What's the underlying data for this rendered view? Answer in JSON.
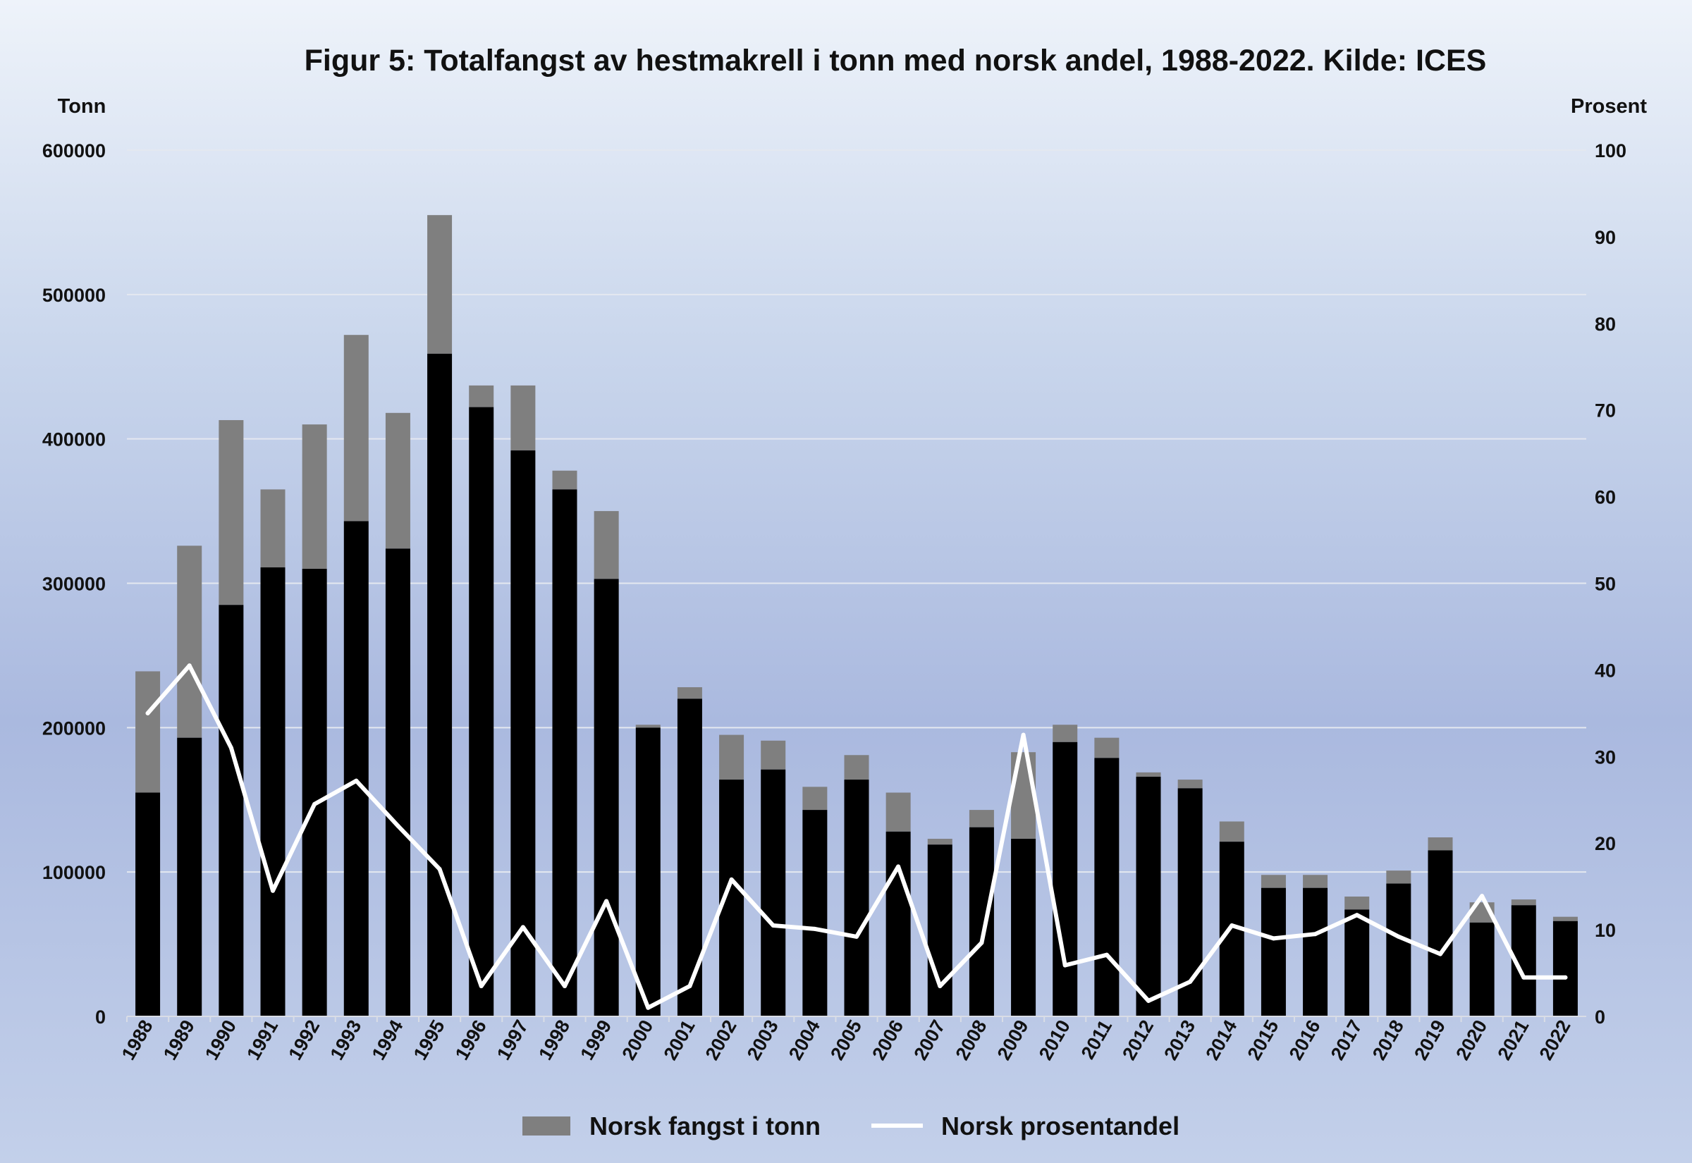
{
  "chart_data": {
    "type": "bar",
    "title": "Figur 5: Totalfangst av hestmakrell i tonn med norsk andel, 1988-2022. Kilde: ICES",
    "ylabel_left": "Tonn",
    "ylabel_right": "Prosent",
    "ylim_left": [
      0,
      600000
    ],
    "ylim_right": [
      0,
      100
    ],
    "yticks_left": [
      "0",
      "100000",
      "200000",
      "300000",
      "400000",
      "500000",
      "600000"
    ],
    "yticks_right": [
      "0",
      "10",
      "20",
      "30",
      "40",
      "50",
      "60",
      "70",
      "80",
      "90",
      "100"
    ],
    "grid": true,
    "legend_position": "bottom",
    "categories": [
      "1988",
      "1989",
      "1990",
      "1991",
      "1992",
      "1993",
      "1994",
      "1995",
      "1996",
      "1997",
      "1998",
      "1999",
      "2000",
      "2001",
      "2002",
      "2003",
      "2004",
      "2005",
      "2006",
      "2007",
      "2008",
      "2009",
      "2010",
      "2011",
      "2012",
      "2013",
      "2014",
      "2015",
      "2016",
      "2017",
      "2018",
      "2019",
      "2020",
      "2021",
      "2022"
    ],
    "series": [
      {
        "role": "bar-base",
        "values": [
          155000,
          193000,
          285000,
          311000,
          310000,
          343000,
          324000,
          459000,
          422000,
          392000,
          365000,
          303000,
          200000,
          220000,
          164000,
          171000,
          143000,
          164000,
          128000,
          119000,
          131000,
          123000,
          190000,
          179000,
          166000,
          158000,
          121000,
          89000,
          89000,
          74000,
          92000,
          115000,
          65000,
          77000,
          66000
        ]
      },
      {
        "name": "Norsk fangst i tonn",
        "role": "bar-stacked",
        "values": [
          84000,
          133000,
          128000,
          54000,
          100000,
          129000,
          94000,
          96000,
          15000,
          45000,
          13000,
          47000,
          2000,
          8000,
          31000,
          20000,
          16000,
          17000,
          27000,
          4000,
          12000,
          60000,
          12000,
          14000,
          3000,
          6000,
          14000,
          9000,
          9000,
          9000,
          9000,
          9000,
          14000,
          4000,
          3000
        ]
      },
      {
        "name": "Norsk prosentandel",
        "role": "line-right-axis",
        "values": [
          35,
          40.5,
          31,
          14.5,
          24.5,
          27.2,
          22,
          17,
          3.5,
          10.3,
          3.5,
          13.3,
          1,
          3.5,
          15.8,
          10.5,
          10.1,
          9.2,
          17.3,
          3.5,
          8.5,
          32.5,
          5.9,
          7.1,
          1.8,
          4,
          10.5,
          9,
          9.5,
          11.7,
          9.2,
          7.2,
          13.9,
          4.5,
          4.5
        ]
      }
    ]
  },
  "colors": {
    "base_bar": "#000000",
    "norsk_bar": "#7f7f7f",
    "line": "#ffffff",
    "grid": "#e4e8f0"
  }
}
